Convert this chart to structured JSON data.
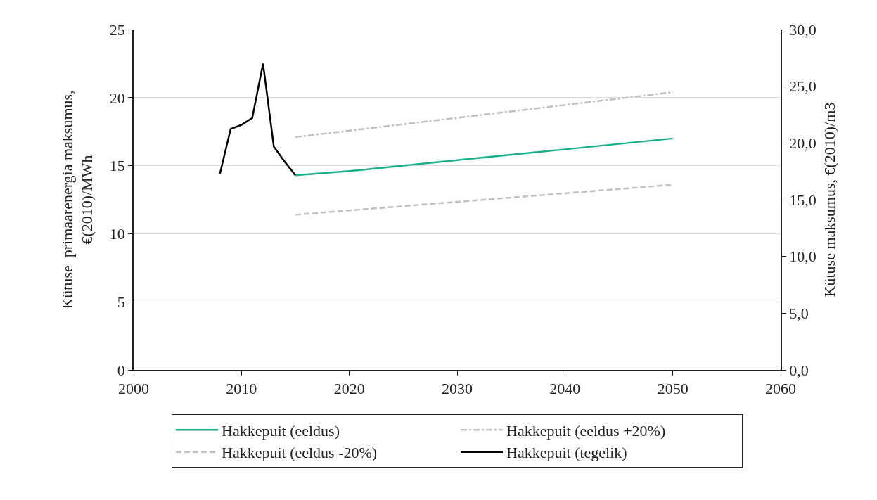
{
  "chart_data": {
    "type": "line",
    "ylabel": "Kütuse  primaarenergia maksumus, €(2010)/MWh",
    "y2label": "Kütuse maksumus, €(2010)/m3",
    "xlim": [
      2000,
      2060
    ],
    "xticks": [
      2000,
      2010,
      2020,
      2030,
      2040,
      2050,
      2060
    ],
    "ylim": [
      0,
      25
    ],
    "yticks": [
      0,
      5,
      10,
      15,
      20,
      25
    ],
    "y2lim": [
      0,
      30
    ],
    "y2ticks": [
      {
        "value": 0,
        "label": "0,0"
      },
      {
        "value": 5,
        "label": "5,0"
      },
      {
        "value": 10,
        "label": "10,0"
      },
      {
        "value": 15,
        "label": "15,0"
      },
      {
        "value": 20,
        "label": "20,0"
      },
      {
        "value": 25,
        "label": "25,0"
      },
      {
        "value": 30,
        "label": "30,0"
      }
    ],
    "grid": "y",
    "legend": "bottom",
    "marker": "none",
    "series": [
      {
        "name": "Hakkepuit (eeldus)",
        "color": "#1aaf8b",
        "line_style": "solid",
        "x": [
          2015,
          2020,
          2025,
          2030,
          2035,
          2040,
          2045,
          2050
        ],
        "values": [
          14.3,
          14.6,
          15.0,
          15.4,
          15.8,
          16.2,
          16.6,
          17.0
        ]
      },
      {
        "name": "Hakkepuit (eeldus +20%)",
        "color": "#c0c0c0",
        "line_style": "dashdot",
        "x": [
          2015,
          2050
        ],
        "values": [
          17.1,
          20.4
        ]
      },
      {
        "name": "Hakkepuit (eeldus -20%)",
        "color": "#c0c0c0",
        "line_style": "dashed",
        "x": [
          2015,
          2050
        ],
        "values": [
          11.4,
          13.6
        ]
      },
      {
        "name": "Hakkepuit (tegelik)",
        "color": "#000000",
        "line_style": "solid",
        "x": [
          2008,
          2009,
          2010,
          2011,
          2012,
          2013,
          2014,
          2015
        ],
        "values": [
          14.4,
          17.7,
          18.0,
          18.5,
          22.5,
          16.4,
          15.3,
          14.3
        ]
      }
    ]
  }
}
